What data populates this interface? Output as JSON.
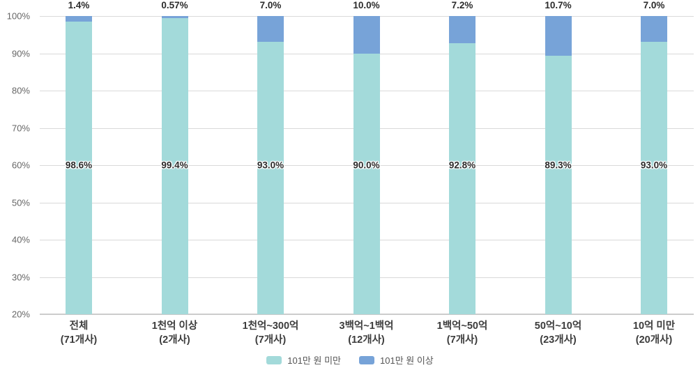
{
  "chart_data": {
    "type": "bar",
    "stacked": true,
    "stack_mode": "percent",
    "title": "",
    "xlabel": "",
    "ylabel": "",
    "categories": [
      {
        "name": "전체",
        "count": "(71개사)"
      },
      {
        "name": "1천억 이상",
        "count": "(2개사)"
      },
      {
        "name": "1천억~300억",
        "count": "(7개사)"
      },
      {
        "name": "3백억~1백억",
        "count": "(12개사)"
      },
      {
        "name": "1백억~50억",
        "count": "(7개사)"
      },
      {
        "name": "50억~10억",
        "count": "(23개사)"
      },
      {
        "name": "10억 미만",
        "count": "(20개사)"
      }
    ],
    "series": [
      {
        "name": "101만 원 미만",
        "color": "#a3dada",
        "values": [
          98.6,
          99.4,
          93.0,
          90.0,
          92.8,
          89.3,
          93.0
        ],
        "labels": [
          "98.6%",
          "99.4%",
          "93.0%",
          "90.0%",
          "92.8%",
          "89.3%",
          "93.0%"
        ],
        "label_placement": "inside-at-60-percent"
      },
      {
        "name": "101만 원 이상",
        "color": "#77a3d8",
        "values": [
          1.4,
          0.57,
          7.0,
          10.0,
          7.2,
          10.7,
          7.0
        ],
        "labels": [
          "1.4%",
          "0.57%",
          "7.0%",
          "10.0%",
          "7.2%",
          "10.7%",
          "7.0%"
        ],
        "label_placement": "above-bar"
      }
    ],
    "ylim": [
      20,
      100
    ],
    "yticks": [
      100,
      90,
      80,
      70,
      60,
      50,
      40,
      30,
      20
    ],
    "ytick_labels": [
      "100%",
      "90%",
      "80%",
      "70%",
      "60%",
      "50%",
      "40%",
      "30%",
      "20%"
    ],
    "grid": true,
    "legend_position": "bottom",
    "inner_label_y_value": 60,
    "colors": {
      "series_under": "#a3dada",
      "series_over": "#77a3d8",
      "gridline": "#d9d9d9",
      "axis_line": "#cccccc",
      "tick_text": "#666666",
      "category_text": "#3c3c3c",
      "value_text": "#2b2b2b",
      "legend_text": "#555555",
      "background": "#ffffff"
    }
  }
}
